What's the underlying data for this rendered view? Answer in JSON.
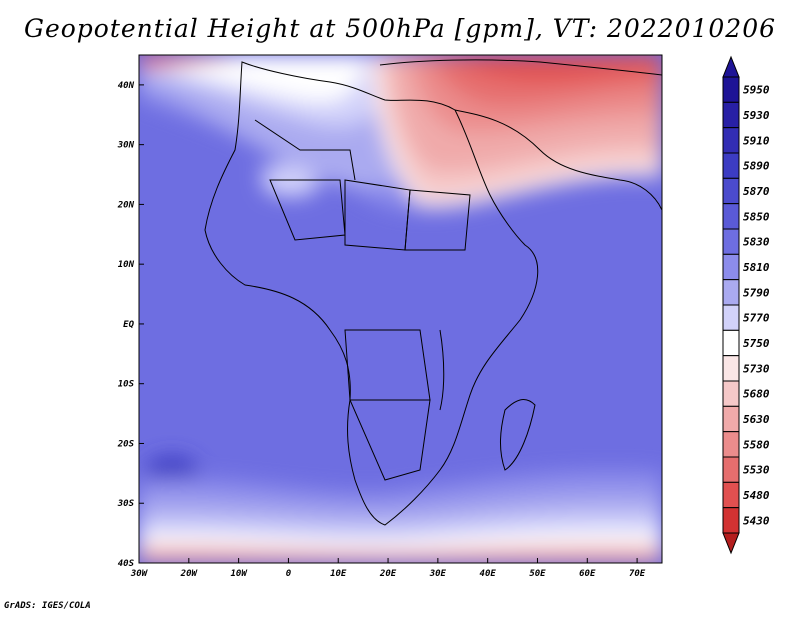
{
  "title": "Geopotential Height at 500hPa [gpm], VT: 2022010206",
  "credit": "GrADS: IGES/COLA",
  "map": {
    "region": "Africa",
    "lon_range": [
      -30,
      75
    ],
    "lat_range": [
      -40,
      45
    ],
    "lat_labels": [
      {
        "value": 40,
        "label": "40N"
      },
      {
        "value": 30,
        "label": "30N"
      },
      {
        "value": 20,
        "label": "20N"
      },
      {
        "value": 10,
        "label": "10N"
      },
      {
        "value": 0,
        "label": "EQ"
      },
      {
        "value": -10,
        "label": "10S"
      },
      {
        "value": -20,
        "label": "20S"
      },
      {
        "value": -30,
        "label": "30S"
      },
      {
        "value": -40,
        "label": "40S"
      }
    ],
    "lon_labels": [
      {
        "value": -30,
        "label": "30W"
      },
      {
        "value": -20,
        "label": "20W"
      },
      {
        "value": -10,
        "label": "10W"
      },
      {
        "value": 0,
        "label": "0"
      },
      {
        "value": 10,
        "label": "10E"
      },
      {
        "value": 20,
        "label": "20E"
      },
      {
        "value": 30,
        "label": "30E"
      },
      {
        "value": 40,
        "label": "40E"
      },
      {
        "value": 50,
        "label": "50E"
      },
      {
        "value": 60,
        "label": "60E"
      },
      {
        "value": 70,
        "label": "70E"
      }
    ]
  },
  "colorbar": {
    "levels": [
      {
        "label": "5950",
        "color": "#1e1496"
      },
      {
        "label": "5930",
        "color": "#2820a5"
      },
      {
        "label": "5910",
        "color": "#322db4"
      },
      {
        "label": "5890",
        "color": "#3c3cc3"
      },
      {
        "label": "5870",
        "color": "#4b4bcd"
      },
      {
        "label": "5850",
        "color": "#5a5ad7"
      },
      {
        "label": "5830",
        "color": "#6e6ee1"
      },
      {
        "label": "5810",
        "color": "#8c8ceb"
      },
      {
        "label": "5790",
        "color": "#aaaaf0"
      },
      {
        "label": "5770",
        "color": "#d2d2fa"
      },
      {
        "label": "5750",
        "color": "#ffffff"
      },
      {
        "label": "5730",
        "color": "#fae6e6"
      },
      {
        "label": "5680",
        "color": "#f5c8c8"
      },
      {
        "label": "5630",
        "color": "#f0aaaa"
      },
      {
        "label": "5580",
        "color": "#eb8c8c"
      },
      {
        "label": "5530",
        "color": "#e66e6e"
      },
      {
        "label": "5480",
        "color": "#e15050"
      },
      {
        "label": "5430",
        "color": "#d23232"
      }
    ],
    "bottom_tip_color": "#b41e1e"
  }
}
